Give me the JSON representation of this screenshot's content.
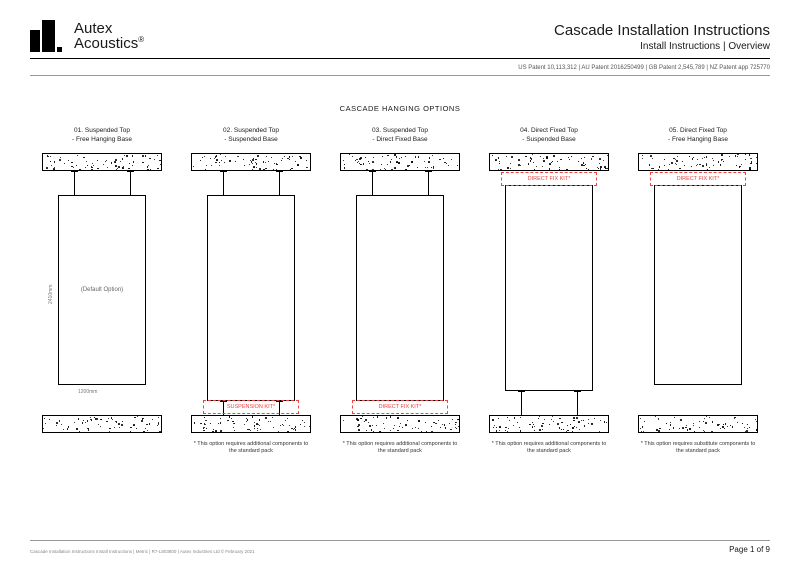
{
  "brand": {
    "name_line1": "Autex",
    "name_line2": "Acoustics",
    "trademark": "®"
  },
  "header": {
    "title": "Cascade Installation Instructions",
    "subtitle": "Install Instructions | Overview"
  },
  "patents": "US Patent 10,113,312 | AU Patent 2016250499 | GB Patent 2,545,789 | NZ Patent app 725770",
  "section_title": "CASCADE HANGING OPTIONS",
  "dimensions": {
    "height": "2410mm",
    "width": "1200mm"
  },
  "kit_labels": {
    "suspension": "SUSPENSION KIT*",
    "direct_fix": "DIRECT FIX KIT*"
  },
  "options": [
    {
      "num": "01.",
      "title": "Suspended Top",
      "base": "- Free Hanging Base",
      "panel_label": "(Default Option)",
      "top_cables": true,
      "bot_cables": false,
      "top_kit": null,
      "bot_kit": null,
      "bot_slab": true,
      "note": "",
      "show_dims": true
    },
    {
      "num": "02.",
      "title": "Suspended Top",
      "base": "- Suspended Base",
      "panel_label": "",
      "top_cables": true,
      "bot_cables": true,
      "top_kit": null,
      "bot_kit": "suspension",
      "bot_slab": true,
      "note": "* This option requires additional components to the standard pack"
    },
    {
      "num": "03.",
      "title": "Suspended Top",
      "base": "- Direct Fixed Base",
      "panel_label": "",
      "top_cables": true,
      "bot_cables": false,
      "top_kit": null,
      "bot_kit": "direct_fix",
      "bot_slab": true,
      "note": "* This option requires additional components to the standard pack"
    },
    {
      "num": "04.",
      "title": "Direct Fixed Top",
      "base": "- Suspended Base",
      "panel_label": "",
      "top_cables": false,
      "bot_cables": true,
      "top_kit": "direct_fix",
      "bot_kit": null,
      "bot_slab": true,
      "note": "* This option requires additional components to the standard pack"
    },
    {
      "num": "05.",
      "title": "Direct Fixed Top",
      "base": "- Free Hanging Base",
      "panel_label": "",
      "top_cables": false,
      "bot_cables": false,
      "top_kit": "direct_fix",
      "bot_kit": null,
      "bot_slab": true,
      "note": "* This option requires substitute components to the standard pack"
    }
  ],
  "footer": {
    "left": "Cascade Installation Instructions Install Instructions | Metric | R7-L803800 | Autex Industries Ltd © February 2021",
    "right": "Page 1 of 9"
  },
  "colors": {
    "kit": "#e44444",
    "text": "#1a1a1a",
    "muted": "#777777"
  }
}
